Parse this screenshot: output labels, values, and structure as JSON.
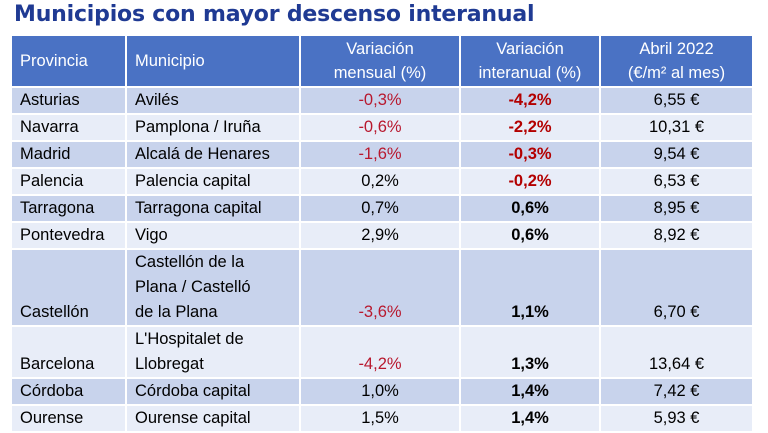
{
  "title": "Municipios con mayor descenso interanual",
  "headers": {
    "provincia": "Provincia",
    "municipio": "Municipio",
    "var_mensual_1": "Variación",
    "var_mensual_2": "mensual (%)",
    "var_interanual_1": "Variación",
    "var_interanual_2": "interanual (%)",
    "precio_1": "Abril 2022",
    "precio_2": "(€/m² al mes)"
  },
  "rows": [
    {
      "provincia": "Asturias",
      "municipio": [
        "Avilés"
      ],
      "mensual": "-0,3%",
      "interanual": "-4,2%",
      "precio": "6,55 €"
    },
    {
      "provincia": "Navarra",
      "municipio": [
        "Pamplona / Iruña"
      ],
      "mensual": "-0,6%",
      "interanual": "-2,2%",
      "precio": "10,31 €"
    },
    {
      "provincia": "Madrid",
      "municipio": [
        "Alcalá de Henares"
      ],
      "mensual": "-1,6%",
      "interanual": "-0,3%",
      "precio": "9,54 €"
    },
    {
      "provincia": "Palencia",
      "municipio": [
        "Palencia capital"
      ],
      "mensual": "0,2%",
      "interanual": "-0,2%",
      "precio": "6,53 €"
    },
    {
      "provincia": "Tarragona",
      "municipio": [
        "Tarragona capital"
      ],
      "mensual": "0,7%",
      "interanual": "0,6%",
      "precio": "8,95 €"
    },
    {
      "provincia": "Pontevedra",
      "municipio": [
        "Vigo"
      ],
      "mensual": "2,9%",
      "interanual": "0,6%",
      "precio": "8,92 €"
    },
    {
      "provincia": "Castellón",
      "municipio": [
        "Castellón de la",
        "Plana / Castelló",
        "de la Plana"
      ],
      "mensual": "-3,6%",
      "interanual": "1,1%",
      "precio": "6,70 €"
    },
    {
      "provincia": "Barcelona",
      "municipio": [
        "L'Hospitalet de",
        "Llobregat"
      ],
      "mensual": "-4,2%",
      "interanual": "1,3%",
      "precio": "13,64 €"
    },
    {
      "provincia": "Córdoba",
      "municipio": [
        "Córdoba capital"
      ],
      "mensual": "1,0%",
      "interanual": "1,4%",
      "precio": "7,42 €"
    },
    {
      "provincia": "Ourense",
      "municipio": [
        "Ourense capital"
      ],
      "mensual": "1,5%",
      "interanual": "1,4%",
      "precio": "5,93 €"
    }
  ]
}
